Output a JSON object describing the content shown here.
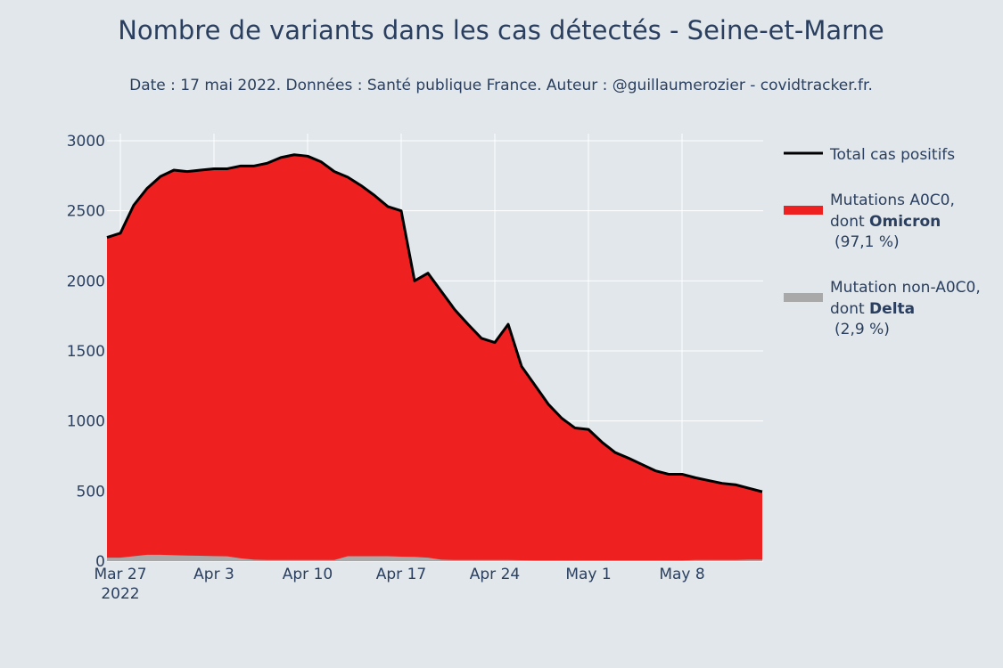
{
  "chart_data": {
    "type": "area",
    "title": "Nombre de variants dans les cas détectés - Seine-et-Marne",
    "subtitle": "Date : 17 mai 2022. Données : Santé publique France. Auteur : @guillaumerozier - covidtracker.fr.",
    "xlabel": "",
    "ylabel": "",
    "ylim": [
      0,
      3000
    ],
    "y_ticks": [
      0,
      500,
      1000,
      1500,
      2000,
      2500,
      3000
    ],
    "y_tick_labels": [
      "0",
      "500",
      "1000",
      "1500",
      "2000",
      "2500",
      "3000"
    ],
    "x_range_days": [
      0,
      48
    ],
    "x_ticks": [
      {
        "day": 0,
        "label": "Mar 27",
        "sublabel": "2022"
      },
      {
        "day": 7,
        "label": "Apr 3"
      },
      {
        "day": 14,
        "label": "Apr 10"
      },
      {
        "day": 21,
        "label": "Apr 17"
      },
      {
        "day": 28,
        "label": "Apr 24"
      },
      {
        "day": 35,
        "label": "May 1"
      },
      {
        "day": 42,
        "label": "May 8"
      }
    ],
    "x_days": [
      -1,
      0,
      1,
      2,
      3,
      4,
      5,
      6,
      7,
      8,
      9,
      10,
      11,
      12,
      13,
      14,
      15,
      16,
      17,
      18,
      19,
      20,
      21,
      22,
      23,
      24,
      25,
      26,
      27,
      28,
      29,
      30,
      31,
      32,
      33,
      34,
      35,
      36,
      37,
      38,
      39,
      40,
      41,
      42,
      43,
      44,
      45,
      46,
      47,
      48
    ],
    "series": [
      {
        "name": "Total cas positifs",
        "kind": "line",
        "color": "#000000",
        "values": [
          2310,
          2340,
          2540,
          2660,
          2745,
          2790,
          2780,
          2790,
          2800,
          2800,
          2820,
          2820,
          2840,
          2880,
          2900,
          2890,
          2850,
          2780,
          2740,
          2680,
          2610,
          2530,
          2500,
          2000,
          2055,
          1925,
          1795,
          1690,
          1590,
          1560,
          1690,
          1390,
          1255,
          1120,
          1020,
          950,
          940,
          850,
          775,
          735,
          690,
          645,
          620,
          620,
          595,
          575,
          555,
          545,
          520,
          495
        ]
      },
      {
        "name": "Mutations A0C0,",
        "name_line2_prefix": "dont ",
        "name_bold": "Omicron",
        "share": "(97,1 %)",
        "kind": "area",
        "color": "#ef2020"
      },
      {
        "name": "Mutation non-A0C0,",
        "name_line2_prefix": "dont ",
        "name_bold": "Delta",
        "share": "(2,9 %)",
        "kind": "area",
        "color": "#a9a9a9",
        "values": [
          25,
          25,
          35,
          45,
          45,
          42,
          40,
          38,
          36,
          34,
          20,
          10,
          8,
          8,
          8,
          8,
          8,
          8,
          35,
          35,
          35,
          35,
          32,
          30,
          25,
          10,
          8,
          8,
          8,
          8,
          8,
          6,
          5,
          5,
          5,
          5,
          5,
          5,
          5,
          5,
          5,
          5,
          5,
          5,
          8,
          8,
          8,
          8,
          10,
          10
        ]
      }
    ]
  }
}
